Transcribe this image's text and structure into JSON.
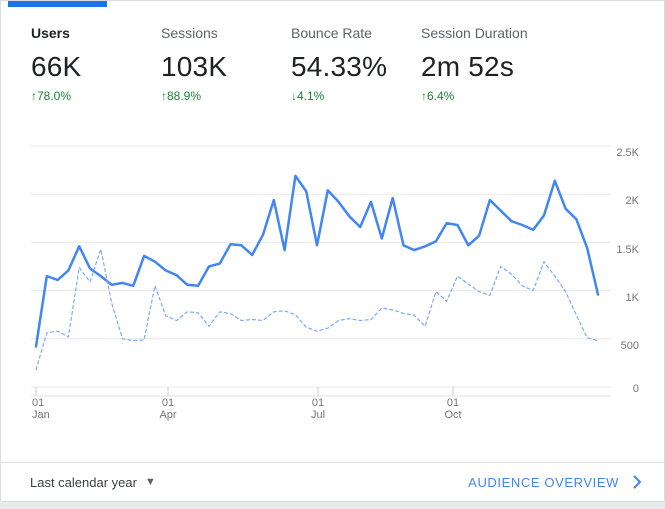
{
  "metrics": [
    {
      "label": "Users",
      "value": "66K",
      "delta_label": "↑78.0%",
      "active": true
    },
    {
      "label": "Sessions",
      "value": "103K",
      "delta_label": "↑88.9%",
      "active": false
    },
    {
      "label": "Bounce Rate",
      "value": "54.33%",
      "delta_label": "↓4.1%",
      "active": false
    },
    {
      "label": "Session Duration",
      "value": "2m 52s",
      "delta_label": "↑6.4%",
      "active": false
    }
  ],
  "footer": {
    "date_range": "Last calendar year",
    "link_label": "AUDIENCE OVERVIEW"
  },
  "colors": {
    "tab_indicator": "#1a73e8",
    "positive_delta_green": "#188038",
    "link_blue": "#4285f4",
    "current_line": "#4285f4",
    "previous_line": "#7baaf7",
    "gridline": "#e8e8e8"
  },
  "chart_data": {
    "type": "line",
    "title": "",
    "xlabel": "",
    "ylabel": "",
    "ylim": [
      0,
      2500
    ],
    "grid": true,
    "legend": "none",
    "y_tick_labels": [
      "2.5K",
      "2K",
      "1.5K",
      "1K",
      "500",
      "0"
    ],
    "x_tick_labels": [
      [
        "01",
        "Jan"
      ],
      [
        "01",
        "Apr"
      ],
      [
        "01",
        "Jul"
      ],
      [
        "01",
        "Oct"
      ]
    ],
    "x_unit": "weeks",
    "series": [
      {
        "name": "current-period",
        "style": "solid",
        "color": "#4285f4",
        "values": [
          420,
          1150,
          1110,
          1210,
          1460,
          1230,
          1150,
          1060,
          1080,
          1050,
          1360,
          1300,
          1210,
          1160,
          1060,
          1050,
          1250,
          1280,
          1480,
          1470,
          1370,
          1580,
          1940,
          1420,
          2190,
          2030,
          1470,
          2040,
          1920,
          1770,
          1660,
          1920,
          1540,
          1960,
          1470,
          1420,
          1460,
          1510,
          1700,
          1680,
          1470,
          1570,
          1940,
          1830,
          1720,
          1680,
          1630,
          1780,
          2140,
          1850,
          1740,
          1440,
          960
        ]
      },
      {
        "name": "previous-period",
        "style": "dashed",
        "color": "#7baaf7",
        "values": [
          180,
          560,
          580,
          520,
          1240,
          1090,
          1430,
          870,
          500,
          480,
          490,
          1050,
          740,
          690,
          780,
          770,
          630,
          780,
          760,
          690,
          700,
          690,
          780,
          790,
          750,
          620,
          580,
          610,
          690,
          710,
          690,
          700,
          820,
          800,
          765,
          745,
          630,
          990,
          890,
          1150,
          1070,
          990,
          950,
          1250,
          1170,
          1050,
          1000,
          1300,
          1150,
          990,
          745,
          510,
          480
        ]
      }
    ]
  }
}
